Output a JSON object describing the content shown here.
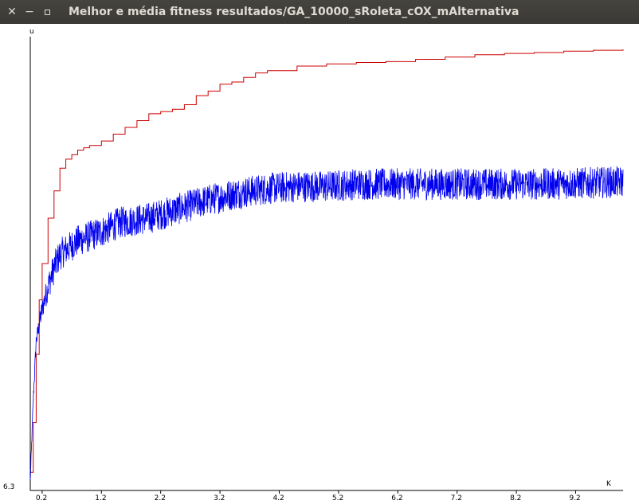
{
  "window": {
    "title": "Melhor e média fitness resultados/GA_10000_sRoleta_cOX_mAlternativa",
    "close_label": "✕",
    "minimize_label": "−"
  },
  "chart_data": {
    "type": "line",
    "title": "Melhor e média fitness resultados/GA_10000_sRoleta_cOX_mAlternativa",
    "xlabel": "K",
    "ylabel": "u",
    "ymin_label": "6.3",
    "xlim": [
      0,
      10.0
    ],
    "x_tick_labels": [
      "0.2",
      "1.2",
      "2.2",
      "3.2",
      "4.2",
      "5.2",
      "6.2",
      "7.2",
      "8.2",
      "9.2"
    ],
    "x_tick_values": [
      0.2,
      1.2,
      2.2,
      3.2,
      4.2,
      5.2,
      6.2,
      7.2,
      8.2,
      9.2
    ],
    "ylim": [
      0,
      1
    ],
    "grid": false,
    "series": [
      {
        "name": "",
        "color": "#cc0000",
        "x": [
          0,
          0.05,
          0.1,
          0.15,
          0.2,
          0.3,
          0.4,
          0.5,
          0.6,
          0.7,
          0.8,
          0.9,
          1.0,
          1.2,
          1.4,
          1.6,
          1.8,
          2.0,
          2.2,
          2.4,
          2.6,
          2.8,
          3.0,
          3.2,
          3.4,
          3.6,
          3.8,
          4.0,
          4.5,
          5.0,
          5.5,
          6.0,
          6.5,
          7.0,
          7.5,
          8.0,
          8.5,
          9.0,
          9.5,
          10.0
        ],
        "y": [
          0.04,
          0.15,
          0.3,
          0.42,
          0.5,
          0.6,
          0.66,
          0.71,
          0.73,
          0.74,
          0.75,
          0.755,
          0.76,
          0.77,
          0.785,
          0.8,
          0.815,
          0.83,
          0.835,
          0.84,
          0.85,
          0.87,
          0.88,
          0.895,
          0.9,
          0.91,
          0.92,
          0.925,
          0.935,
          0.94,
          0.943,
          0.945,
          0.95,
          0.955,
          0.96,
          0.963,
          0.965,
          0.968,
          0.97,
          0.972
        ]
      },
      {
        "name": "",
        "color": "#0000ee",
        "x": [
          0,
          0.05,
          0.1,
          0.2,
          0.3,
          0.4,
          0.5,
          0.6,
          0.8,
          1.0,
          1.2,
          1.5,
          2.0,
          2.5,
          3.0,
          3.5,
          4.0,
          4.5,
          5.0,
          5.5,
          6.0,
          6.5,
          7.0,
          7.5,
          8.0,
          8.5,
          9.0,
          9.5,
          10.0
        ],
        "y": [
          0.02,
          0.2,
          0.33,
          0.4,
          0.45,
          0.49,
          0.52,
          0.53,
          0.55,
          0.56,
          0.57,
          0.59,
          0.6,
          0.62,
          0.64,
          0.655,
          0.665,
          0.67,
          0.67,
          0.675,
          0.675,
          0.675,
          0.675,
          0.675,
          0.675,
          0.675,
          0.676,
          0.678,
          0.68
        ],
        "noise_amplitude": 0.035
      }
    ]
  }
}
